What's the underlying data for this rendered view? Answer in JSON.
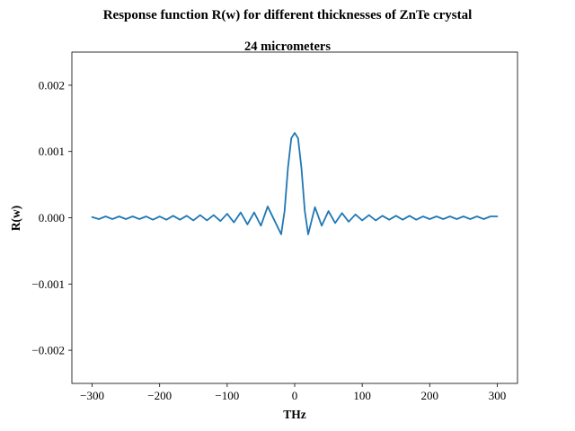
{
  "chart_data": {
    "type": "line",
    "suptitle": "Response function R(w) for different thicknesses of ZnTe crystal",
    "title": "24 micrometers",
    "xlabel": "THz",
    "ylabel": "R(w)",
    "xlim": [
      -330,
      330
    ],
    "ylim": [
      -0.0025,
      0.0025
    ],
    "xticks": [
      -300,
      -200,
      -100,
      0,
      100,
      200,
      300
    ],
    "xtick_labels": [
      "−300",
      "−200",
      "−100",
      "0",
      "100",
      "200",
      "300"
    ],
    "yticks": [
      -0.002,
      -0.001,
      0.0,
      0.001,
      0.002
    ],
    "ytick_labels": [
      "−0.002",
      "−0.001",
      "0.000",
      "0.001",
      "0.002"
    ],
    "grid": false,
    "legend": false,
    "series": [
      {
        "color": "#1f77b4",
        "x": [
          -300,
          -290,
          -280,
          -270,
          -260,
          -250,
          -240,
          -230,
          -220,
          -210,
          -200,
          -190,
          -180,
          -170,
          -160,
          -150,
          -140,
          -130,
          -120,
          -110,
          -100,
          -90,
          -80,
          -70,
          -60,
          -50,
          -40,
          -30,
          -20,
          -15,
          -10,
          -5,
          0,
          5,
          10,
          15,
          20,
          30,
          40,
          50,
          60,
          70,
          80,
          90,
          100,
          110,
          120,
          130,
          140,
          150,
          160,
          170,
          180,
          190,
          200,
          210,
          220,
          230,
          240,
          250,
          260,
          270,
          280,
          290,
          300
        ],
        "y": [
          1e-05,
          -2e-05,
          2e-05,
          -2e-05,
          2e-05,
          -2e-05,
          2e-05,
          -2e-05,
          2e-05,
          -3e-05,
          2e-05,
          -3e-05,
          3e-05,
          -3e-05,
          3e-05,
          -4e-05,
          4e-05,
          -4e-05,
          4e-05,
          -5e-05,
          6e-05,
          -7e-05,
          8e-05,
          -0.0001,
          8e-05,
          -0.00012,
          0.00017,
          -4e-05,
          -0.00025,
          0.0001,
          0.00075,
          0.0012,
          0.00128,
          0.0012,
          0.00075,
          0.0001,
          -0.00025,
          0.00016,
          -0.00012,
          0.0001,
          -8e-05,
          7e-05,
          -6e-05,
          5e-05,
          -4e-05,
          4e-05,
          -4e-05,
          3e-05,
          -3e-05,
          3e-05,
          -3e-05,
          3e-05,
          -3e-05,
          2e-05,
          -2e-05,
          2e-05,
          -2e-05,
          2e-05,
          -2e-05,
          2e-05,
          -2e-05,
          2e-05,
          -2e-05,
          2e-05,
          2e-05
        ]
      }
    ]
  }
}
